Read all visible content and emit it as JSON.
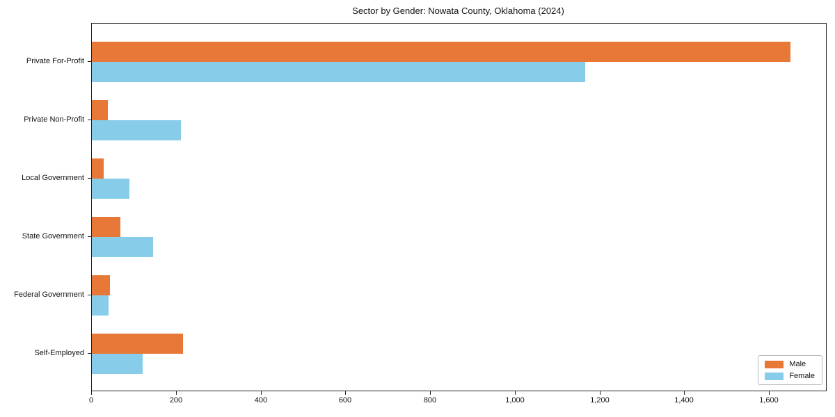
{
  "chart_data": {
    "type": "bar",
    "orientation": "horizontal",
    "title": "Sector by Gender: Nowata County, Oklahoma (2024)",
    "categories": [
      "Private For-Profit",
      "Private Non-Profit",
      "Local Government",
      "State Government",
      "Federal Government",
      "Self-Employed"
    ],
    "series": [
      {
        "name": "Male",
        "color": "#e87838",
        "values": [
          1650,
          37,
          28,
          67,
          43,
          216
        ]
      },
      {
        "name": "Female",
        "color": "#87cde9",
        "values": [
          1165,
          211,
          88,
          145,
          39,
          120
        ]
      }
    ],
    "xlim": [
      0,
      1733
    ],
    "x_ticks": [
      0,
      200,
      400,
      600,
      800,
      1000,
      1200,
      1400,
      1600
    ],
    "x_tick_labels": [
      "0",
      "200",
      "400",
      "600",
      "800",
      "1,000",
      "1,200",
      "1,400",
      "1,600"
    ],
    "xlabel": "",
    "ylabel": "",
    "grid": false,
    "legend": {
      "position": "lower right",
      "entries": [
        "Male",
        "Female"
      ]
    },
    "spine_color": "#222222",
    "background": "#ffffff"
  }
}
